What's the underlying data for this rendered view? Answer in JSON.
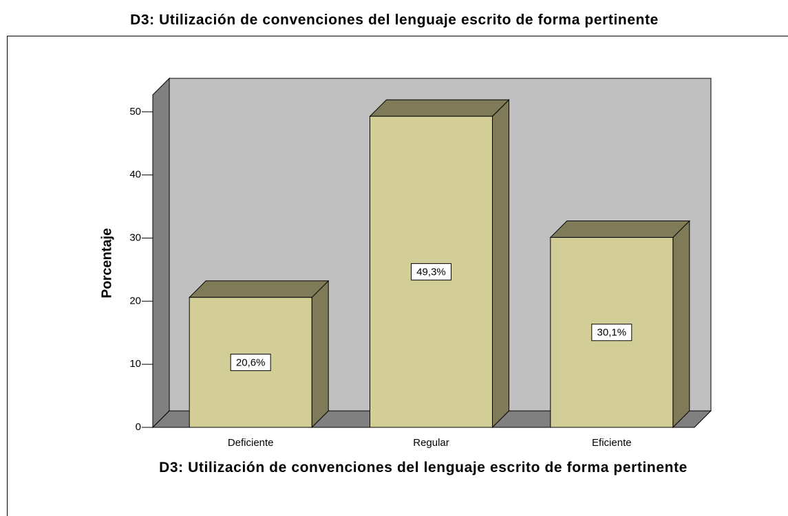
{
  "chart_data": {
    "type": "bar3d",
    "title": "D3: Utilización de convenciones del lenguaje escrito de forma pertinente",
    "x_label": "D3: Utilización de convenciones del lenguaje escrito de forma pertinente",
    "y_label": "Porcentaje",
    "categories": [
      "Deficiente",
      "Regular",
      "Eficiente"
    ],
    "values": [
      20.6,
      49.3,
      30.1
    ],
    "value_labels": [
      "20,6%",
      "49,3%",
      "30,1%"
    ],
    "color": "#d3ce97",
    "ylim": [
      0,
      52.7
    ],
    "yticks": [
      0,
      10,
      20,
      30,
      40,
      50
    ]
  }
}
